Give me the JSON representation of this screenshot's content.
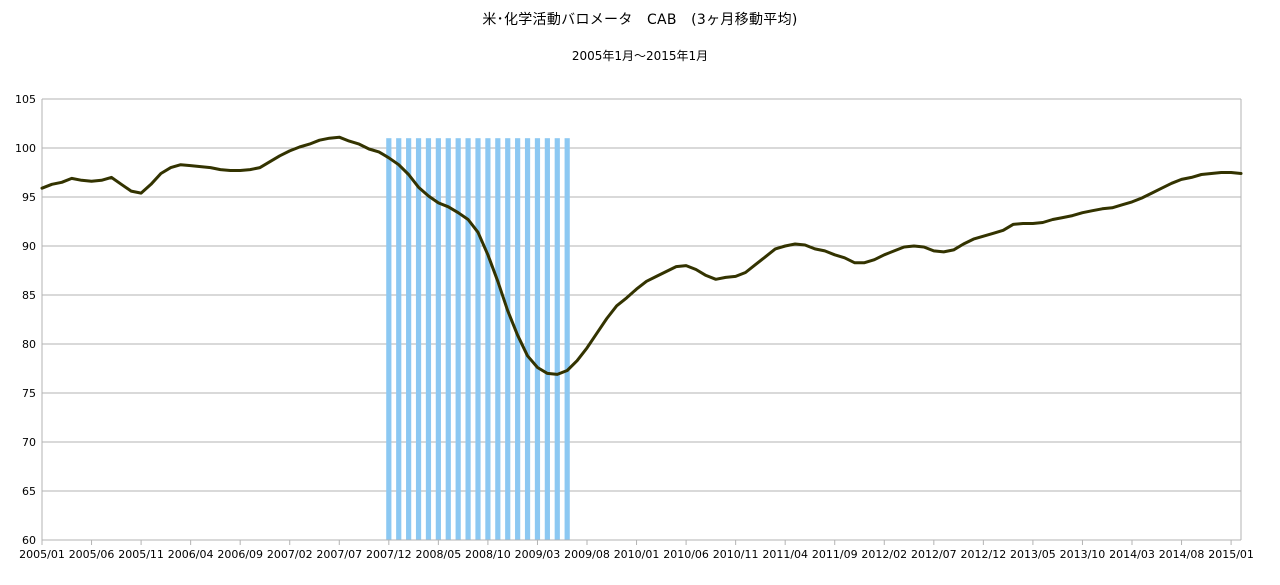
{
  "chart_data": {
    "type": "line",
    "title": "米･化学活動バロメータ　CAB　(3ヶ月移動平均)",
    "subtitle": "2005年1月～2015年1月",
    "xlabel": "",
    "ylabel": "",
    "ylim": [
      60,
      105
    ],
    "yticks": [
      60,
      65,
      70,
      75,
      80,
      85,
      90,
      95,
      100,
      105
    ],
    "xticks": [
      "2005/01",
      "2005/06",
      "2005/11",
      "2006/04",
      "2006/09",
      "2007/02",
      "2007/07",
      "2007/12",
      "2008/05",
      "2008/10",
      "2009/03",
      "2009/08",
      "2010/01",
      "2010/06",
      "2010/11",
      "2011/04",
      "2011/09",
      "2012/02",
      "2012/07",
      "2012/12",
      "2013/05",
      "2013/10",
      "2014/03",
      "2014/08",
      "2015/01"
    ],
    "grid": "horizontal",
    "legend": "none",
    "shaded_region": {
      "start": "2007/12",
      "end": "2009/06",
      "top_value": 101,
      "color": "#8cc8f2",
      "meaning": "recession"
    },
    "series": [
      {
        "color": "#333300",
        "start": "2005/01",
        "values": [
          95.9,
          96.3,
          96.5,
          96.9,
          96.7,
          96.6,
          96.7,
          97.0,
          96.3,
          95.6,
          95.4,
          96.3,
          97.4,
          98.0,
          98.3,
          98.2,
          98.1,
          98.0,
          97.8,
          97.7,
          97.7,
          97.8,
          98.0,
          98.6,
          99.2,
          99.7,
          100.1,
          100.4,
          100.8,
          101.0,
          101.1,
          100.7,
          100.4,
          99.9,
          99.6,
          99.0,
          98.3,
          97.3,
          96.0,
          95.1,
          94.4,
          94.0,
          93.4,
          92.7,
          91.4,
          89.1,
          86.4,
          83.4,
          80.9,
          78.8,
          77.6,
          77.0,
          76.9,
          77.3,
          78.3,
          79.6,
          81.1,
          82.6,
          83.9,
          84.7,
          85.6,
          86.4,
          86.9,
          87.4,
          87.9,
          88.0,
          87.6,
          87.0,
          86.6,
          86.8,
          86.9,
          87.3,
          88.1,
          88.9,
          89.7,
          90.0,
          90.2,
          90.1,
          89.7,
          89.5,
          89.1,
          88.8,
          88.3,
          88.3,
          88.6,
          89.1,
          89.5,
          89.9,
          90.0,
          89.9,
          89.5,
          89.4,
          89.6,
          90.2,
          90.7,
          91.0,
          91.3,
          91.6,
          92.2,
          92.3,
          92.3,
          92.4,
          92.7,
          92.9,
          93.1,
          93.4,
          93.6,
          93.8,
          93.9,
          94.2,
          94.5,
          94.9,
          95.4,
          95.9,
          96.4,
          96.8,
          97.0,
          97.3,
          97.4,
          97.5,
          97.5,
          97.4
        ]
      }
    ]
  }
}
